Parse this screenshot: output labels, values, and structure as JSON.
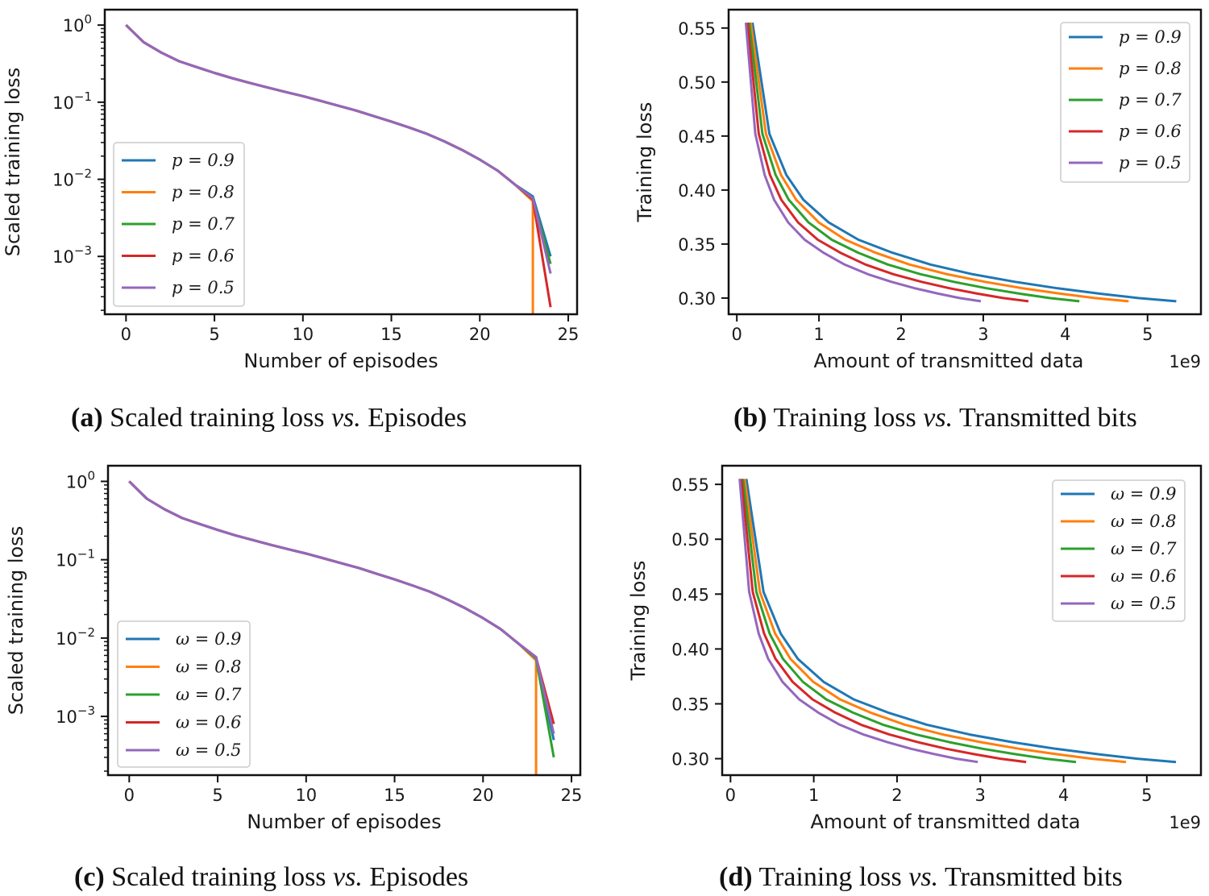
{
  "figure": {
    "captions": [
      {
        "tag": "(a)",
        "pre": " Scaled training loss ",
        "vs": "vs.",
        "post": " Episodes"
      },
      {
        "tag": "(b)",
        "pre": " Training loss ",
        "vs": "vs.",
        "post": " Transmitted bits"
      },
      {
        "tag": "(c)",
        "pre": " Scaled training loss ",
        "vs": "vs.",
        "post": " Episodes"
      },
      {
        "tag": "(d)",
        "pre": " Training loss ",
        "vs": "vs.",
        "post": " Transmitted bits"
      }
    ]
  },
  "chart_data": [
    {
      "id": "a",
      "type": "line",
      "scale": "log",
      "xlabel": "Number of episodes",
      "ylabel": "Scaled training loss",
      "xlim": [
        -1.2,
        25.5
      ],
      "ylim_log10": [
        -3.75,
        0.2
      ],
      "xticks": [
        0,
        5,
        10,
        15,
        20,
        25
      ],
      "xtick_labels": [
        "0",
        "5",
        "10",
        "15",
        "20",
        "25"
      ],
      "yticks_log10": [
        0,
        -1,
        -2,
        -3
      ],
      "ytick_labels": [
        [
          "10",
          "0"
        ],
        [
          "10",
          "−1"
        ],
        [
          "10",
          "−2"
        ],
        [
          "10",
          "−3"
        ]
      ],
      "legend_position": "lower-left",
      "base_curve": {
        "x": [
          0,
          1,
          2,
          3,
          4,
          5,
          6,
          7,
          8,
          9,
          10,
          11,
          12,
          13,
          14,
          15,
          16,
          17,
          18,
          19,
          20,
          21,
          22,
          23
        ],
        "y": [
          1.0,
          0.6,
          0.44,
          0.34,
          0.285,
          0.24,
          0.205,
          0.178,
          0.155,
          0.136,
          0.12,
          0.104,
          0.09,
          0.078,
          0.066,
          0.056,
          0.047,
          0.039,
          0.031,
          0.024,
          0.018,
          0.013,
          0.0085,
          0.0055
        ]
      },
      "series": [
        {
          "name": "p = 0.9",
          "color": "#1f77b4",
          "tail": {
            "x": [
              23,
              24
            ],
            "y": [
              0.006,
              0.001
            ]
          }
        },
        {
          "name": "p = 0.8",
          "color": "#ff7f0e",
          "tail": {
            "x": [
              23,
              23
            ],
            "y": [
              0.0052,
              0.00015
            ]
          }
        },
        {
          "name": "p = 0.7",
          "color": "#2ca02c",
          "tail": {
            "x": [
              23,
              24
            ],
            "y": [
              0.0055,
              0.0008
            ]
          }
        },
        {
          "name": "p = 0.6",
          "color": "#d62728",
          "tail": {
            "x": [
              23,
              24
            ],
            "y": [
              0.0055,
              0.00022
            ]
          }
        },
        {
          "name": "p = 0.5",
          "color": "#9467bd",
          "tail": {
            "x": [
              23,
              24
            ],
            "y": [
              0.0057,
              0.0006
            ]
          }
        }
      ]
    },
    {
      "id": "b",
      "type": "line",
      "scale": "linear",
      "xlabel": "Amount of transmitted data",
      "ylabel": "Training loss",
      "offset_text": "1e9",
      "xlim": [
        -0.1,
        5.65
      ],
      "ylim": [
        0.285,
        0.567
      ],
      "xticks": [
        0,
        1,
        2,
        3,
        4,
        5
      ],
      "xtick_labels": [
        "0",
        "1",
        "2",
        "3",
        "4",
        "5"
      ],
      "yticks": [
        0.3,
        0.35,
        0.4,
        0.45,
        0.5,
        0.55
      ],
      "ytick_labels": [
        "0.30",
        "0.35",
        "0.40",
        "0.45",
        "0.50",
        "0.55"
      ],
      "legend_position": "upper-right",
      "curve_shape": {
        "u": [
          0,
          0.04,
          0.08,
          0.12,
          0.18,
          0.25,
          0.33,
          0.42,
          0.52,
          0.62,
          0.72,
          0.82,
          0.91,
          1.0
        ],
        "y": [
          0.555,
          0.452,
          0.414,
          0.391,
          0.37,
          0.354,
          0.342,
          0.331,
          0.322,
          0.315,
          0.309,
          0.304,
          0.3,
          0.297
        ]
      },
      "series": [
        {
          "name": "p = 0.9",
          "color": "#1f77b4",
          "x_start": 0.19,
          "x_end": 5.35
        },
        {
          "name": "p = 0.8",
          "color": "#ff7f0e",
          "x_start": 0.17,
          "x_end": 4.77
        },
        {
          "name": "p = 0.7",
          "color": "#2ca02c",
          "x_start": 0.15,
          "x_end": 4.17
        },
        {
          "name": "p = 0.6",
          "color": "#d62728",
          "x_start": 0.13,
          "x_end": 3.55
        },
        {
          "name": "p = 0.5",
          "color": "#9467bd",
          "x_start": 0.11,
          "x_end": 2.97
        }
      ]
    },
    {
      "id": "c",
      "type": "line",
      "scale": "log",
      "xlabel": "Number of episodes",
      "ylabel": "Scaled training loss",
      "xlim": [
        -1.2,
        25.5
      ],
      "ylim_log10": [
        -3.75,
        0.2
      ],
      "xticks": [
        0,
        5,
        10,
        15,
        20,
        25
      ],
      "xtick_labels": [
        "0",
        "5",
        "10",
        "15",
        "20",
        "25"
      ],
      "yticks_log10": [
        0,
        -1,
        -2,
        -3
      ],
      "ytick_labels": [
        [
          "10",
          "0"
        ],
        [
          "10",
          "−1"
        ],
        [
          "10",
          "−2"
        ],
        [
          "10",
          "−3"
        ]
      ],
      "legend_position": "lower-left",
      "base_curve": {
        "x": [
          0,
          1,
          2,
          3,
          4,
          5,
          6,
          7,
          8,
          9,
          10,
          11,
          12,
          13,
          14,
          15,
          16,
          17,
          18,
          19,
          20,
          21,
          22,
          23
        ],
        "y": [
          1.0,
          0.6,
          0.44,
          0.34,
          0.285,
          0.24,
          0.205,
          0.178,
          0.155,
          0.136,
          0.12,
          0.104,
          0.09,
          0.078,
          0.066,
          0.056,
          0.047,
          0.039,
          0.031,
          0.024,
          0.018,
          0.013,
          0.0085,
          0.0055
        ]
      },
      "series": [
        {
          "name": "ω = 0.9",
          "color": "#1f77b4",
          "tail": {
            "x": [
              23,
              24
            ],
            "y": [
              0.0057,
              0.0005
            ]
          }
        },
        {
          "name": "ω = 0.8",
          "color": "#ff7f0e",
          "tail": {
            "x": [
              23,
              23
            ],
            "y": [
              0.0052,
              0.00015
            ]
          }
        },
        {
          "name": "ω = 0.7",
          "color": "#2ca02c",
          "tail": {
            "x": [
              23,
              24
            ],
            "y": [
              0.0055,
              0.0003
            ]
          }
        },
        {
          "name": "ω = 0.6",
          "color": "#d62728",
          "tail": {
            "x": [
              23,
              24
            ],
            "y": [
              0.0057,
              0.0008
            ]
          }
        },
        {
          "name": "ω = 0.5",
          "color": "#9467bd",
          "tail": {
            "x": [
              23,
              24
            ],
            "y": [
              0.0057,
              0.0006
            ]
          }
        }
      ]
    },
    {
      "id": "d",
      "type": "line",
      "scale": "linear",
      "xlabel": "Amount of transmitted data",
      "ylabel": "Training loss",
      "offset_text": "1e9",
      "xlim": [
        -0.1,
        5.65
      ],
      "ylim": [
        0.285,
        0.567
      ],
      "xticks": [
        0,
        1,
        2,
        3,
        4,
        5
      ],
      "xtick_labels": [
        "0",
        "1",
        "2",
        "3",
        "4",
        "5"
      ],
      "yticks": [
        0.3,
        0.35,
        0.4,
        0.45,
        0.5,
        0.55
      ],
      "ytick_labels": [
        "0.30",
        "0.35",
        "0.40",
        "0.45",
        "0.50",
        "0.55"
      ],
      "legend_position": "upper-right",
      "curve_shape": {
        "u": [
          0,
          0.04,
          0.08,
          0.12,
          0.18,
          0.25,
          0.33,
          0.42,
          0.52,
          0.62,
          0.72,
          0.82,
          0.91,
          1.0
        ],
        "y": [
          0.555,
          0.452,
          0.414,
          0.391,
          0.37,
          0.354,
          0.342,
          0.331,
          0.322,
          0.315,
          0.309,
          0.304,
          0.3,
          0.297
        ]
      },
      "series": [
        {
          "name": "ω = 0.9",
          "color": "#1f77b4",
          "x_start": 0.19,
          "x_end": 5.35
        },
        {
          "name": "ω = 0.8",
          "color": "#ff7f0e",
          "x_start": 0.17,
          "x_end": 4.75
        },
        {
          "name": "ω = 0.7",
          "color": "#2ca02c",
          "x_start": 0.15,
          "x_end": 4.15
        },
        {
          "name": "ω = 0.6",
          "color": "#d62728",
          "x_start": 0.13,
          "x_end": 3.55
        },
        {
          "name": "ω = 0.5",
          "color": "#9467bd",
          "x_start": 0.11,
          "x_end": 2.97
        }
      ]
    }
  ]
}
